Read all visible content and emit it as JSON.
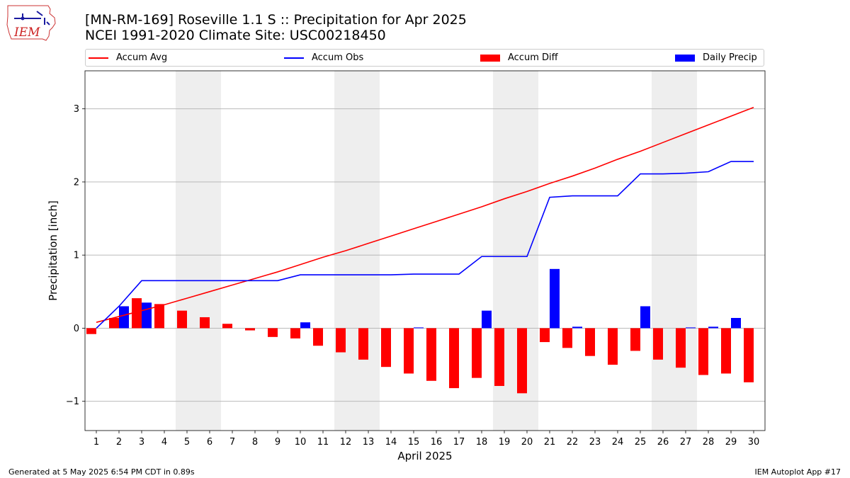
{
  "header": {
    "title_line1": "[MN-RM-169] Roseville 1.1 S :: Precipitation for Apr 2025",
    "title_line2": "NCEI 1991-2020 Climate Site: USC00218450",
    "logo_text": "IEM"
  },
  "footer": {
    "left": "Generated at 5 May 2025 6:54 PM CDT in 0.89s",
    "right": "IEM Autoplot App #17"
  },
  "colors": {
    "accum_avg": "#ff0000",
    "accum_obs": "#0000ff",
    "accum_diff": "#ff0000",
    "daily_precip": "#0000ff",
    "weekend_shade": "#eeeeee",
    "grid": "#b0b0b0"
  },
  "chart_data": {
    "type": "bar",
    "xlabel": "April 2025",
    "ylabel": "Precipitation [inch]",
    "x": [
      1,
      2,
      3,
      4,
      5,
      6,
      7,
      8,
      9,
      10,
      11,
      12,
      13,
      14,
      15,
      16,
      17,
      18,
      19,
      20,
      21,
      22,
      23,
      24,
      25,
      26,
      27,
      28,
      29,
      30
    ],
    "xlim": [
      0.5,
      30.5
    ],
    "ylim": [
      -1.4,
      3.52
    ],
    "yticks": [
      -1,
      0,
      1,
      2,
      3
    ],
    "ytick_labels": [
      "−1",
      "0",
      "1",
      "2",
      "3"
    ],
    "grid": "horizontal",
    "legend_position": "top",
    "shaded_days": [
      [
        5,
        6
      ],
      [
        12,
        13
      ],
      [
        19,
        20
      ],
      [
        26,
        27
      ]
    ],
    "series": [
      {
        "name": "Accum Avg",
        "kind": "line",
        "values": [
          0.08,
          0.16,
          0.24,
          0.32,
          0.41,
          0.5,
          0.59,
          0.68,
          0.77,
          0.87,
          0.97,
          1.06,
          1.16,
          1.26,
          1.36,
          1.46,
          1.56,
          1.66,
          1.77,
          1.87,
          1.98,
          2.08,
          2.19,
          2.31,
          2.42,
          2.54,
          2.66,
          2.78,
          2.9,
          3.02
        ]
      },
      {
        "name": "Accum Obs",
        "kind": "line",
        "values": [
          0.0,
          0.3,
          0.65,
          0.65,
          0.65,
          0.65,
          0.65,
          0.65,
          0.65,
          0.73,
          0.73,
          0.73,
          0.73,
          0.73,
          0.74,
          0.74,
          0.74,
          0.98,
          0.98,
          0.98,
          1.79,
          1.81,
          1.81,
          1.81,
          2.11,
          2.11,
          2.12,
          2.14,
          2.28,
          2.28
        ]
      },
      {
        "name": "Accum Diff",
        "kind": "bar",
        "values": [
          -0.08,
          0.14,
          0.41,
          0.33,
          0.24,
          0.15,
          0.06,
          -0.03,
          -0.12,
          -0.14,
          -0.24,
          -0.33,
          -0.43,
          -0.53,
          -0.62,
          -0.72,
          -0.82,
          -0.68,
          -0.79,
          -0.89,
          -0.19,
          -0.27,
          -0.38,
          -0.5,
          -0.31,
          -0.43,
          -0.54,
          -0.64,
          -0.62,
          -0.74
        ]
      },
      {
        "name": "Daily Precip",
        "kind": "bar",
        "values": [
          0,
          0.3,
          0.35,
          0,
          0,
          0,
          0,
          0,
          0,
          0.08,
          0,
          0,
          0,
          0,
          0.01,
          0,
          0,
          0.24,
          0,
          0,
          0.81,
          0.02,
          0,
          0,
          0.3,
          0,
          0.01,
          0.02,
          0.14,
          0
        ]
      }
    ]
  }
}
